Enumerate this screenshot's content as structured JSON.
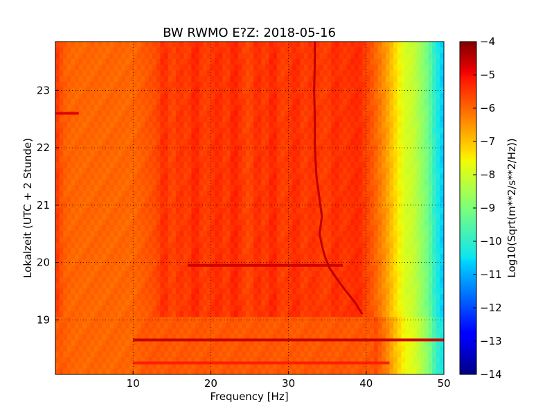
{
  "chart_data": {
    "type": "heatmap",
    "title": "BW RWMO E?Z: 2018-05-16",
    "xlabel": "Frequency [Hz]",
    "ylabel": "Lokalzeit (UTC + 2 Stunde)",
    "xlim": [
      0,
      50
    ],
    "ylim": [
      23.85,
      18.05
    ],
    "x_ticks": [
      10,
      20,
      30,
      40,
      50
    ],
    "y_ticks": [
      19,
      20,
      21,
      22,
      23
    ],
    "grid": true,
    "colormap": "jet",
    "colorbar": {
      "label": "Log10(Sqrt(m**2/s**2/Hz))",
      "range": [
        -14,
        -4
      ],
      "ticks": [
        -4,
        -5,
        -6,
        -7,
        -8,
        -9,
        -10,
        -11,
        -12,
        -13,
        -14
      ]
    },
    "frequency_profile": {
      "frequencies": [
        0,
        1,
        2,
        4,
        6,
        8,
        10,
        12,
        13,
        14,
        15,
        16,
        17,
        18,
        19,
        20,
        21,
        22,
        23,
        24,
        25,
        26,
        27,
        28,
        29,
        30,
        31,
        32,
        33,
        34,
        35,
        36,
        37,
        38,
        39,
        40,
        41,
        42,
        43,
        44,
        45,
        46,
        47,
        48,
        49,
        50
      ],
      "values": [
        -5.4,
        -5.9,
        -6.0,
        -6.0,
        -6.0,
        -6.0,
        -6.0,
        -5.8,
        -5.7,
        -5.3,
        -5.7,
        -5.4,
        -5.6,
        -5.2,
        -5.6,
        -5.5,
        -5.3,
        -5.6,
        -5.2,
        -5.5,
        -5.7,
        -5.3,
        -5.6,
        -5.2,
        -5.6,
        -5.5,
        -5.3,
        -5.6,
        -5.4,
        -5.5,
        -5.6,
        -5.3,
        -5.5,
        -5.4,
        -5.3,
        -5.6,
        -5.9,
        -6.3,
        -6.8,
        -7.4,
        -7.9,
        -8.1,
        -8.6,
        -9.2,
        -10.2,
        -10.8
      ]
    },
    "features": [
      {
        "time_start": 18.05,
        "time_end": 19.05,
        "freq_min": 0,
        "freq_max": 50,
        "offset": -0.25
      },
      {
        "time": 18.25,
        "freq_min": 10,
        "freq_max": 43,
        "value": -5.2
      },
      {
        "time": 18.65,
        "freq_min": 10,
        "freq_max": 50,
        "value": -4.6
      },
      {
        "time": 19.95,
        "freq_min": 17,
        "freq_max": 37,
        "value": -4.7
      },
      {
        "time": 22.6,
        "freq_min": 0,
        "freq_max": 3,
        "value": -4.8
      }
    ],
    "trace": {
      "times": [
        19.1,
        19.3,
        19.5,
        19.7,
        19.9,
        20.1,
        20.3,
        20.5,
        20.8,
        21.1,
        21.5,
        22.0,
        22.5,
        23.0,
        23.5,
        23.85
      ],
      "frequencies": [
        39.5,
        38.6,
        37.4,
        36.3,
        35.3,
        34.7,
        34.3,
        34.0,
        34.3,
        34.0,
        33.6,
        33.4,
        33.4,
        33.3,
        33.4,
        33.4
      ]
    }
  }
}
